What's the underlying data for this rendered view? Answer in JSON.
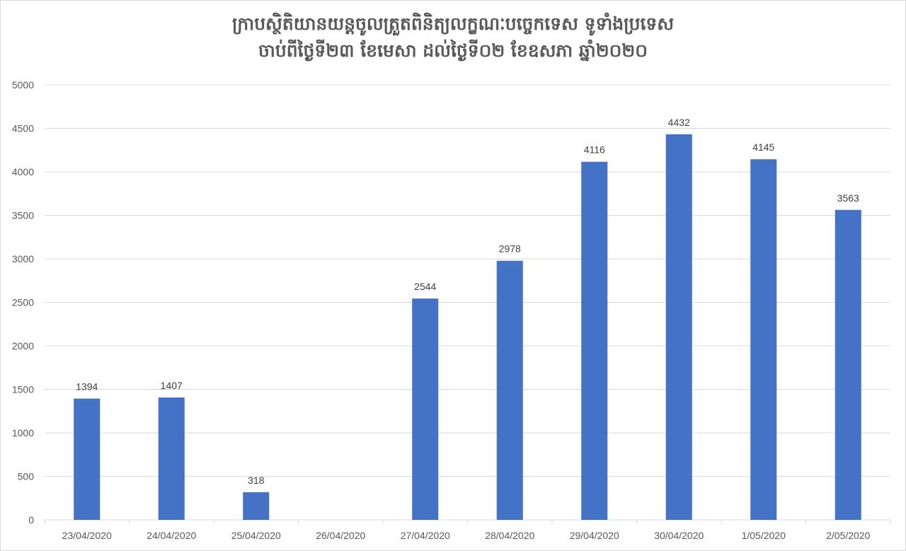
{
  "chart_data": {
    "type": "bar",
    "title": "ក្រាបស្ថិតិយានយន្តចូលត្រួតពិនិត្យលក្ខណៈបច្ចេកទេស ទូទាំងប្រទេស",
    "subtitle": "ចាប់ពីថ្ងៃទី២៣ ខែមេសា ដល់ថ្ងៃទី០២ ខែឧសភា ឆ្នាំ២០២០",
    "xlabel": "",
    "ylabel": "",
    "categories": [
      "23/04/2020",
      "24/04/2020",
      "25/04/2020",
      "26/04/2020",
      "27/04/2020",
      "28/04/2020",
      "29/04/2020",
      "30/04/2020",
      "1/05/2020",
      "2/05/2020"
    ],
    "values": [
      1394,
      1407,
      318,
      null,
      2544,
      2978,
      4116,
      4432,
      4145,
      3563
    ],
    "ylim": [
      0,
      5000
    ],
    "yticks": [
      0,
      500,
      1000,
      1500,
      2000,
      2500,
      3000,
      3500,
      4000,
      4500,
      5000
    ],
    "grid": true,
    "legend": "none",
    "bar_color": "#4472C4",
    "grid_color": "#d9d9d9",
    "text_color": "#595959"
  }
}
